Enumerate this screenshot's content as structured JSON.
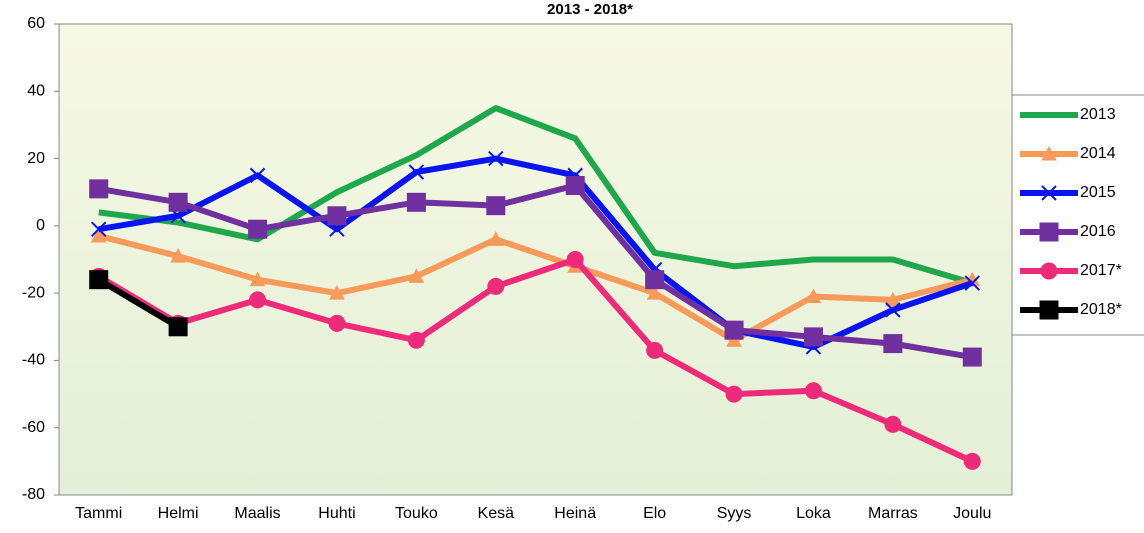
{
  "chart_data": {
    "type": "line",
    "title": "2013 - 2018*",
    "categories": [
      "Tammi",
      "Helmi",
      "Maalis",
      "Huhti",
      "Touko",
      "Kesä",
      "Heinä",
      "Elo",
      "Syys",
      "Loka",
      "Marras",
      "Joulu"
    ],
    "ylim": [
      -80,
      60
    ],
    "yticks": [
      -80,
      -60,
      -40,
      -20,
      0,
      20,
      40,
      60
    ],
    "grid": false,
    "legend": "right",
    "series": [
      {
        "name": "2013",
        "color": "#1fa84b",
        "marker": "none",
        "values": [
          4,
          1,
          -4,
          10,
          21,
          35,
          26,
          -8,
          -12,
          -10,
          -10,
          -17
        ]
      },
      {
        "name": "2014",
        "color": "#f79a5a",
        "marker": "triangle",
        "values": [
          -3,
          -9,
          -16,
          -20,
          -15,
          -4,
          -12,
          -20,
          -34,
          -21,
          -22,
          -16
        ]
      },
      {
        "name": "2015",
        "color": "#0a14f0",
        "marker": "star",
        "values": [
          -1,
          3,
          15,
          -1,
          16,
          20,
          15,
          -13,
          -31,
          -36,
          -25,
          -17
        ]
      },
      {
        "name": "2016",
        "color": "#7030a0",
        "marker": "square",
        "values": [
          11,
          7,
          -1,
          3,
          7,
          6,
          12,
          -16,
          -31,
          -33,
          -35,
          -39
        ]
      },
      {
        "name": "2017*",
        "color": "#ee2a7b",
        "marker": "circle",
        "values": [
          -15,
          -29,
          -22,
          -29,
          -34,
          -18,
          -10,
          -37,
          -50,
          -49,
          -59,
          -70
        ]
      },
      {
        "name": "2018*",
        "color": "#000000",
        "marker": "square",
        "values": [
          -16,
          -30,
          null,
          null,
          null,
          null,
          null,
          null,
          null,
          null,
          null,
          null
        ]
      }
    ]
  }
}
